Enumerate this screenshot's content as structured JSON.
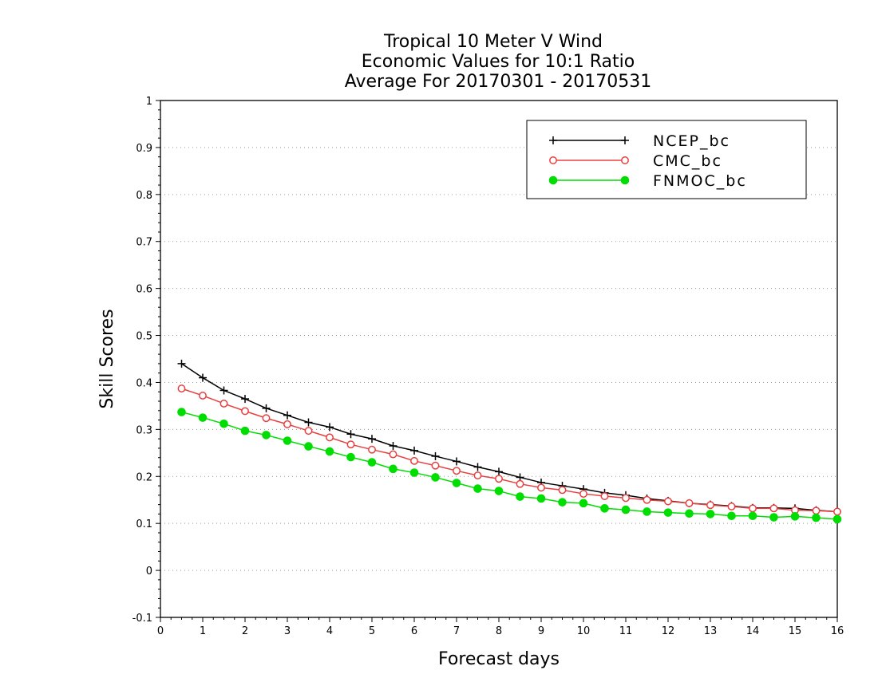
{
  "chart_data": {
    "type": "line",
    "title_lines": [
      "Tropical 10 Meter V Wind",
      "Economic Values for 10:1 Ratio",
      "Average For 20170301 - 20170531"
    ],
    "xlabel": "Forecast days",
    "ylabel": "Skill Scores",
    "xlim": [
      0,
      16
    ],
    "ylim": [
      -0.1,
      1
    ],
    "x_ticks": [
      "0",
      "1",
      "2",
      "3",
      "4",
      "5",
      "6",
      "7",
      "8",
      "9",
      "10",
      "11",
      "12",
      "13",
      "14",
      "15",
      "16"
    ],
    "y_ticks": [
      "-0.1",
      "0",
      "0.1",
      "0.2",
      "0.3",
      "0.4",
      "0.5",
      "0.6",
      "0.7",
      "0.8",
      "0.9",
      "1"
    ],
    "y_tick_values": [
      -0.1,
      0,
      0.1,
      0.2,
      0.3,
      0.4,
      0.5,
      0.6,
      0.7,
      0.8,
      0.9,
      1
    ],
    "grid": "dotted-horizontal",
    "legend_position": "top-right",
    "x": [
      0.5,
      1,
      1.5,
      2,
      2.5,
      3,
      3.5,
      4,
      4.5,
      5,
      5.5,
      6,
      6.5,
      7,
      7.5,
      8,
      8.5,
      9,
      9.5,
      10,
      10.5,
      11,
      11.5,
      12,
      12.5,
      13,
      13.5,
      14,
      14.5,
      15,
      15.5,
      16
    ],
    "series": [
      {
        "name": "NCEP_bc",
        "color": "#000000",
        "marker": "plus",
        "values": [
          0.44,
          0.41,
          0.383,
          0.365,
          0.345,
          0.33,
          0.315,
          0.305,
          0.29,
          0.28,
          0.265,
          0.255,
          0.243,
          0.232,
          0.22,
          0.21,
          0.198,
          0.187,
          0.18,
          0.173,
          0.165,
          0.16,
          0.153,
          0.148,
          0.143,
          0.14,
          0.137,
          0.133,
          0.133,
          0.132,
          0.128,
          0.125
        ]
      },
      {
        "name": "CMC_bc",
        "color": "#e84040",
        "marker": "open-circle",
        "values": [
          0.387,
          0.372,
          0.355,
          0.339,
          0.324,
          0.311,
          0.297,
          0.283,
          0.268,
          0.257,
          0.247,
          0.233,
          0.223,
          0.212,
          0.202,
          0.195,
          0.184,
          0.176,
          0.171,
          0.163,
          0.158,
          0.154,
          0.15,
          0.147,
          0.143,
          0.139,
          0.136,
          0.132,
          0.132,
          0.128,
          0.127,
          0.125
        ]
      },
      {
        "name": "FNMOC_bc",
        "color": "#00dd00",
        "marker": "filled-circle",
        "values": [
          0.337,
          0.325,
          0.312,
          0.297,
          0.288,
          0.276,
          0.264,
          0.253,
          0.241,
          0.23,
          0.216,
          0.208,
          0.198,
          0.186,
          0.174,
          0.169,
          0.157,
          0.153,
          0.145,
          0.143,
          0.132,
          0.129,
          0.125,
          0.123,
          0.121,
          0.12,
          0.116,
          0.116,
          0.113,
          0.115,
          0.112,
          0.109
        ]
      }
    ]
  }
}
